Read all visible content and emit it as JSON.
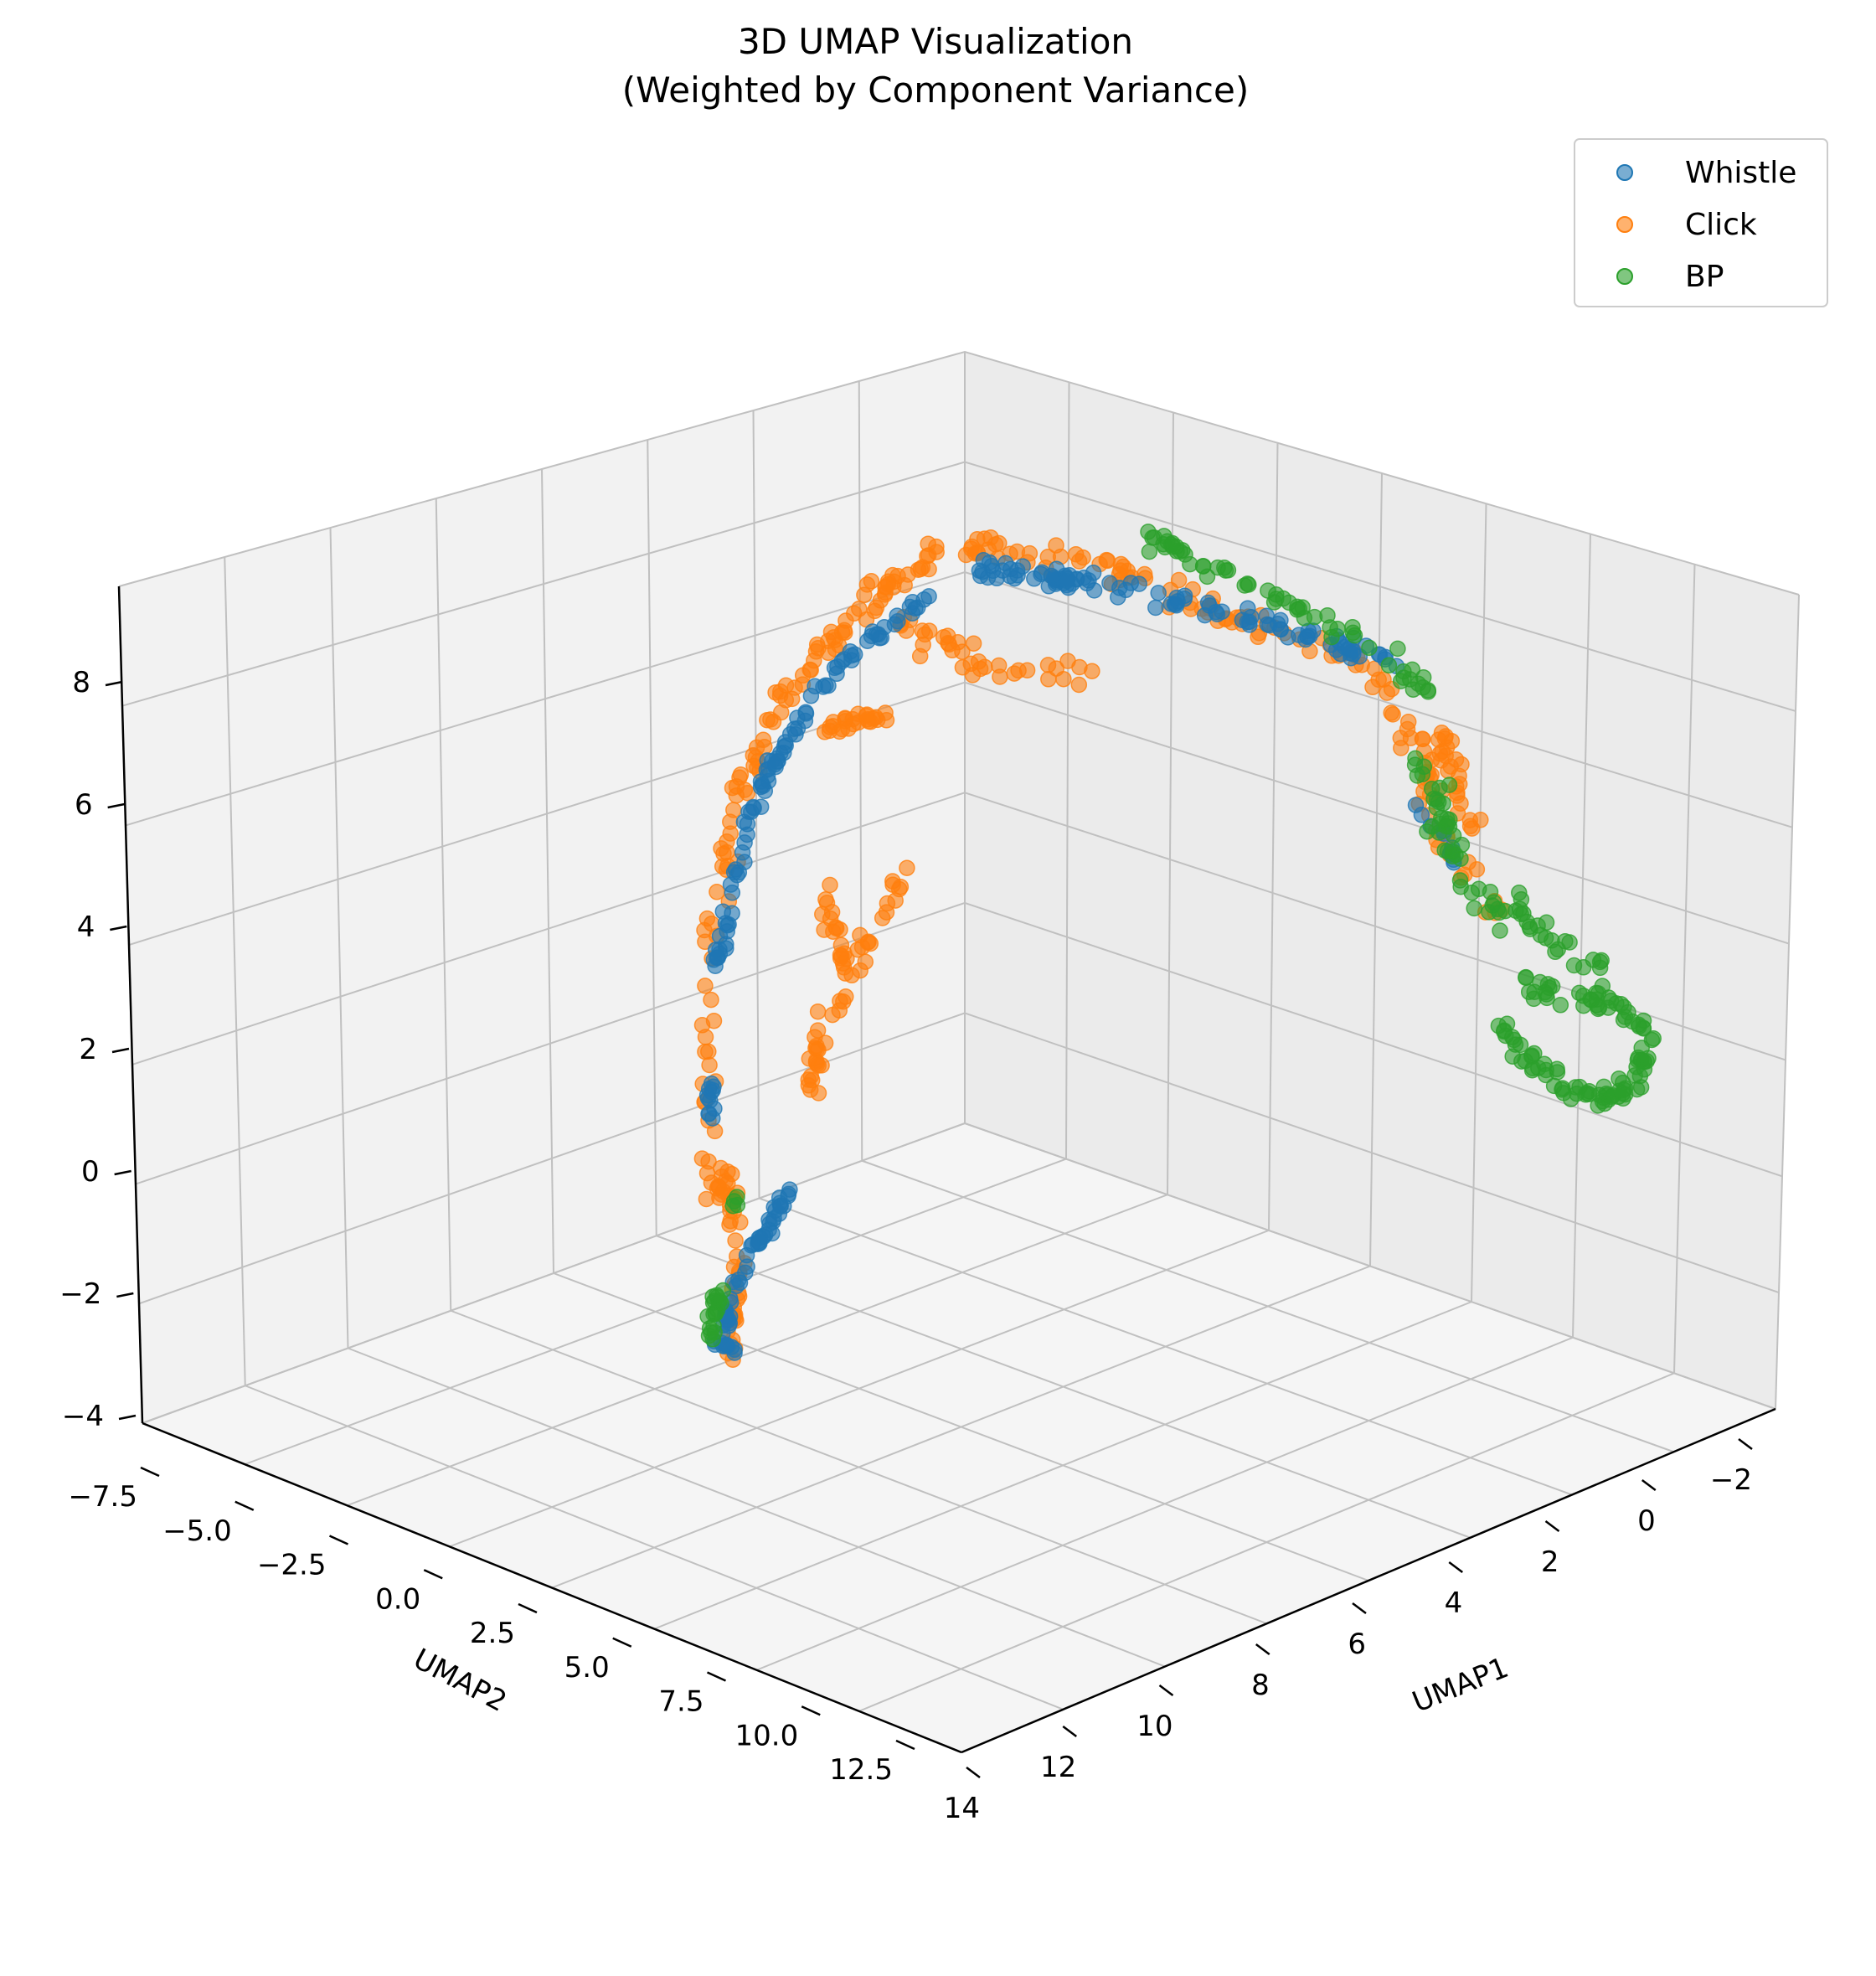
{
  "chart_data": {
    "type": "scatter",
    "projection": "3d",
    "title_line1": "3D UMAP Visualization",
    "title_line2": "(Weighted by Component Variance)",
    "xlabel": "UMAP1",
    "ylabel": "UMAP2",
    "zlabel": "",
    "xlim": [
      -3,
      14
    ],
    "ylim": [
      -7.5,
      13.5
    ],
    "zlim": [
      -4,
      9
    ],
    "x_ticks": [
      "−2",
      "0",
      "2",
      "4",
      "6",
      "8",
      "10",
      "12",
      "14"
    ],
    "y_ticks": [
      "−7.5",
      "−5.0",
      "−2.5",
      "0.0",
      "2.5",
      "5.0",
      "7.5",
      "10.0",
      "12.5"
    ],
    "z_ticks": [
      "−4",
      "−2",
      "0",
      "2",
      "4",
      "6",
      "8"
    ],
    "grid": true,
    "legend_position": "top-right",
    "series": [
      {
        "name": "Whistle",
        "color": "#1f77b4"
      },
      {
        "name": "Click",
        "color": "#ff7f0e"
      },
      {
        "name": "BP",
        "color": "#2ca02c"
      }
    ]
  }
}
